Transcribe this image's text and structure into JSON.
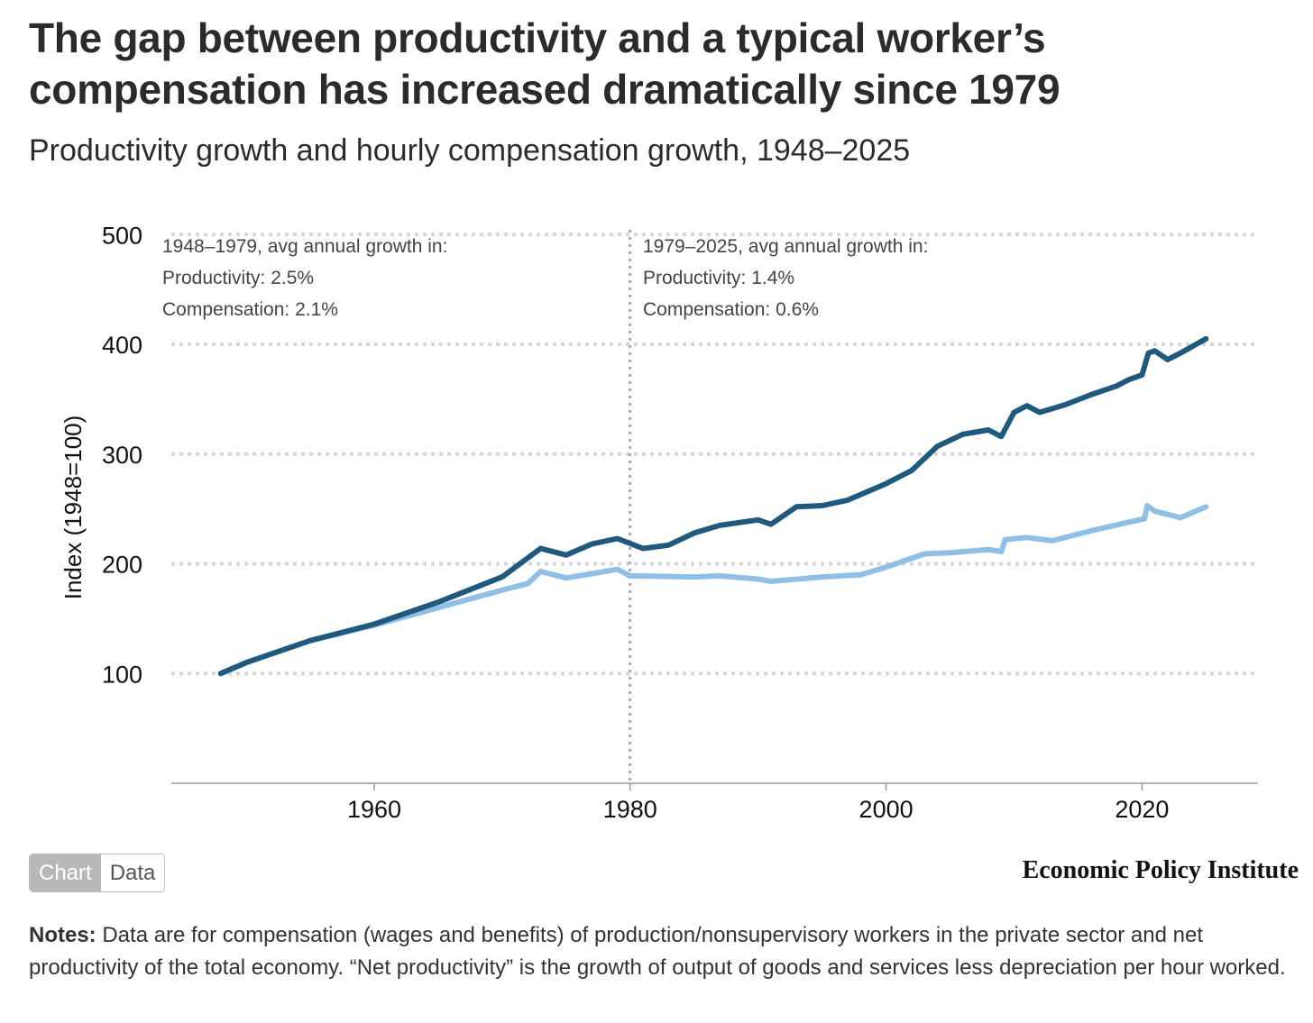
{
  "title": "The gap between productivity and a typical worker’s compensation has increased dramatically since 1979",
  "subtitle": "Productivity growth and hourly compensation growth, 1948–2025",
  "chart_data": {
    "type": "line",
    "ylabel": "Index (1948=100)",
    "xlabel": "",
    "ylim": [
      0,
      500
    ],
    "xlim": [
      1946.6,
      2031.6
    ],
    "yticks": [
      100,
      200,
      300,
      400,
      500
    ],
    "xticks": [
      1960,
      1980,
      2000,
      2020
    ],
    "grid": "horizontal dotted",
    "divider_year": 1979,
    "annotations": [
      {
        "period": "1948–1979, avg annual growth in:",
        "productivity": "Productivity: 2.5%",
        "compensation": "Compensation: 2.1%"
      },
      {
        "period": "1979–2025, avg annual growth in:",
        "productivity": "Productivity: 1.4%",
        "compensation": "Compensation: 0.6%"
      }
    ],
    "series": [
      {
        "name": "Productivity",
        "color": "#1f5a7e",
        "x": [
          1948,
          1950,
          1955,
          1960,
          1965,
          1970,
          1973,
          1975,
          1977,
          1979,
          1981,
          1983,
          1985,
          1987,
          1990,
          1991,
          1993,
          1995,
          1997,
          2000,
          2002,
          2004,
          2006,
          2008,
          2009,
          2010,
          2011,
          2012,
          2014,
          2016,
          2018,
          2019,
          2020.0,
          2020.5,
          2021,
          2022,
          2023,
          2025
        ],
        "y": [
          100,
          110,
          130,
          145,
          165,
          188,
          214,
          208,
          218,
          223,
          214,
          217,
          228,
          235,
          240,
          236,
          252,
          253,
          258,
          273,
          285,
          307,
          318,
          322,
          316,
          338,
          344,
          338,
          345,
          354,
          362,
          368,
          372,
          392,
          394,
          386,
          392,
          405
        ]
      },
      {
        "name": "Compensation",
        "color": "#90bfe6",
        "x": [
          1948,
          1950,
          1955,
          1960,
          1965,
          1970,
          1972,
          1973,
          1975,
          1977,
          1979,
          1980,
          1985,
          1987,
          1990,
          1991,
          1995,
          1998,
          2000,
          2003,
          2005,
          2008,
          2009,
          2009.3,
          2011,
          2013,
          2016,
          2019,
          2020.2,
          2020.4,
          2021,
          2022,
          2023,
          2025
        ],
        "y": [
          100,
          110,
          130,
          144,
          160,
          176,
          182,
          193,
          187,
          191,
          195,
          189,
          188,
          189,
          186,
          184,
          188,
          190,
          197,
          209,
          210,
          213,
          211,
          222,
          224,
          221,
          230,
          238,
          241,
          253,
          248,
          245,
          242,
          252
        ]
      }
    ]
  },
  "toggle": {
    "chart": "Chart",
    "data": "Data"
  },
  "brand": "Economic Policy Institute",
  "notes": {
    "label": "Notes:",
    "text": " Data are for compensation (wages and benefits) of production/nonsupervisory workers in the private sector and net productivity of the total economy. “Net productivity” is the growth of output of goods and services less depreciation per hour worked."
  }
}
